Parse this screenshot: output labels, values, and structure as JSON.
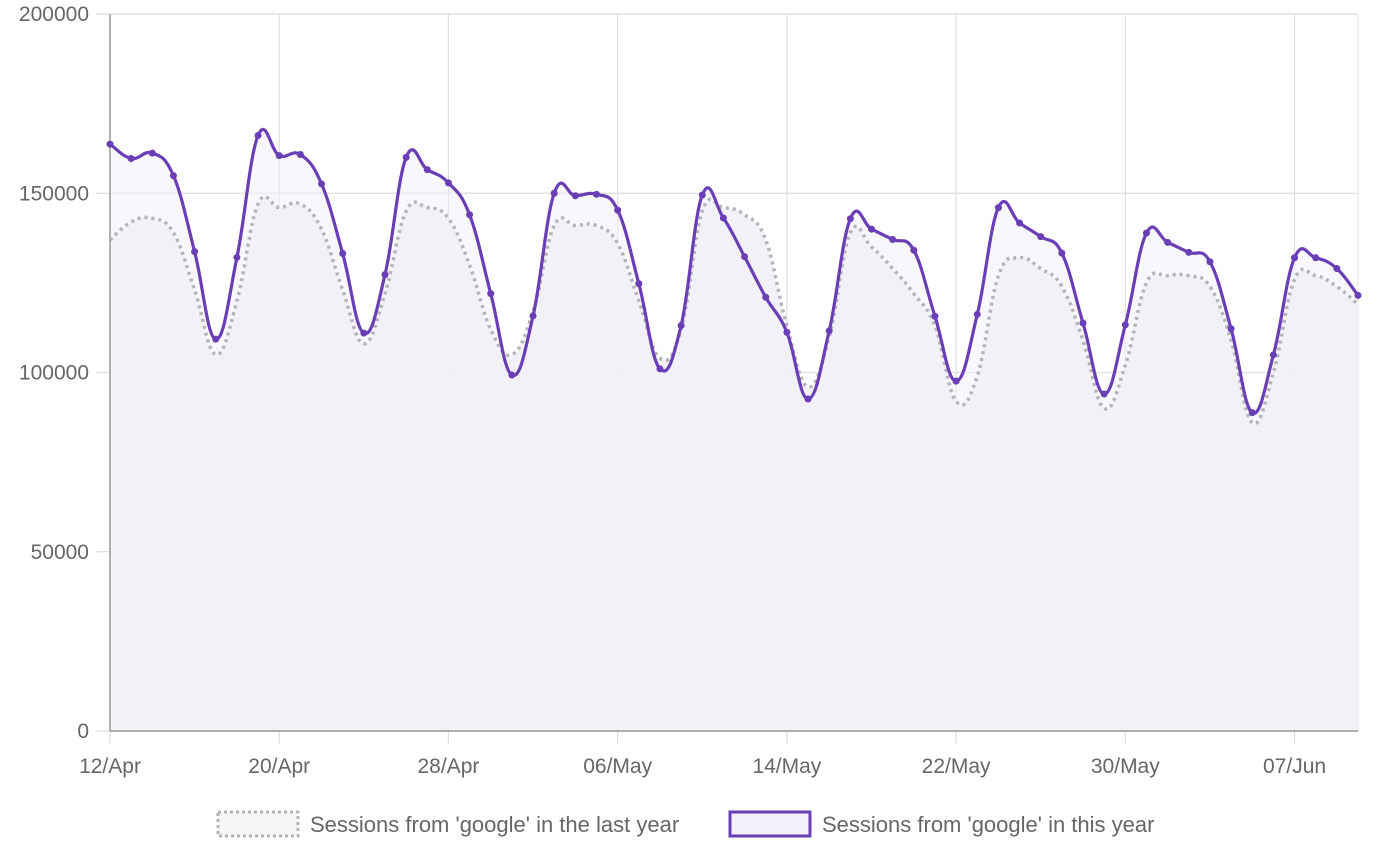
{
  "chart_data": {
    "type": "line",
    "title": "",
    "xlabel": "",
    "ylabel": "",
    "ylim": [
      0,
      200000
    ],
    "y_ticks": [
      "0",
      "50000",
      "100000",
      "150000",
      "200000"
    ],
    "x_ticks": [
      "12/Apr",
      "20/Apr",
      "28/Apr",
      "06/May",
      "14/May",
      "22/May",
      "30/May",
      "07/Jun"
    ],
    "x_tick_index": [
      0,
      8,
      16,
      24,
      32,
      40,
      48,
      56
    ],
    "grid": true,
    "legend_position": "bottom",
    "x": [
      "12/Apr",
      "13/Apr",
      "14/Apr",
      "15/Apr",
      "16/Apr",
      "17/Apr",
      "18/Apr",
      "19/Apr",
      "20/Apr",
      "21/Apr",
      "22/Apr",
      "23/Apr",
      "24/Apr",
      "25/Apr",
      "26/Apr",
      "27/Apr",
      "28/Apr",
      "29/Apr",
      "30/Apr",
      "01/May",
      "02/May",
      "03/May",
      "04/May",
      "05/May",
      "06/May",
      "07/May",
      "08/May",
      "09/May",
      "10/May",
      "11/May",
      "12/May",
      "13/May",
      "14/May",
      "15/May",
      "16/May",
      "17/May",
      "18/May",
      "19/May",
      "20/May",
      "21/May",
      "22/May",
      "23/May",
      "24/May",
      "25/May",
      "26/May",
      "27/May",
      "28/May",
      "29/May",
      "30/May",
      "31/May",
      "01/Jun",
      "02/Jun",
      "03/Jun",
      "04/Jun",
      "05/Jun",
      "06/Jun",
      "07/Jun",
      "08/Jun",
      "09/Jun",
      "10/Jun"
    ],
    "series": [
      {
        "name": "Sessions from 'google' in the last year",
        "style": "dotted",
        "color": "#b3b3b8",
        "fill": "#f1f0f4",
        "values": [
          137000,
          142000,
          143000,
          139000,
          123000,
          105000,
          120000,
          147000,
          146000,
          147000,
          140000,
          123000,
          108000,
          122000,
          145000,
          146000,
          143000,
          130000,
          112000,
          105000,
          117000,
          141000,
          141000,
          141000,
          136000,
          120000,
          104000,
          112000,
          145000,
          146000,
          144000,
          137000,
          113000,
          96000,
          110000,
          139000,
          135000,
          129000,
          122000,
          113000,
          92000,
          99000,
          127000,
          132000,
          129000,
          124000,
          109000,
          90000,
          102000,
          125000,
          127000,
          127000,
          124000,
          109000,
          86000,
          100000,
          126000,
          127000,
          124000,
          119000
        ]
      },
      {
        "name": "Sessions from 'google' in this year",
        "style": "solid",
        "color": "#6a3eb5",
        "fill": "#f3f0fa",
        "values": [
          163700,
          159700,
          161200,
          154900,
          133700,
          109300,
          132100,
          166100,
          160500,
          160800,
          152600,
          133200,
          111000,
          127300,
          160000,
          156600,
          152900,
          144000,
          122000,
          99300,
          115800,
          150000,
          149300,
          149700,
          145300,
          124800,
          101000,
          113100,
          149500,
          143100,
          132300,
          121000,
          111200,
          92600,
          111600,
          142900,
          140000,
          137100,
          134100,
          115700,
          97600,
          116200,
          146000,
          141700,
          137900,
          133300,
          113800,
          94000,
          113300,
          138900,
          136300,
          133500,
          130900,
          112200,
          88800,
          104900,
          132000,
          132000,
          129000,
          121500
        ]
      }
    ]
  }
}
